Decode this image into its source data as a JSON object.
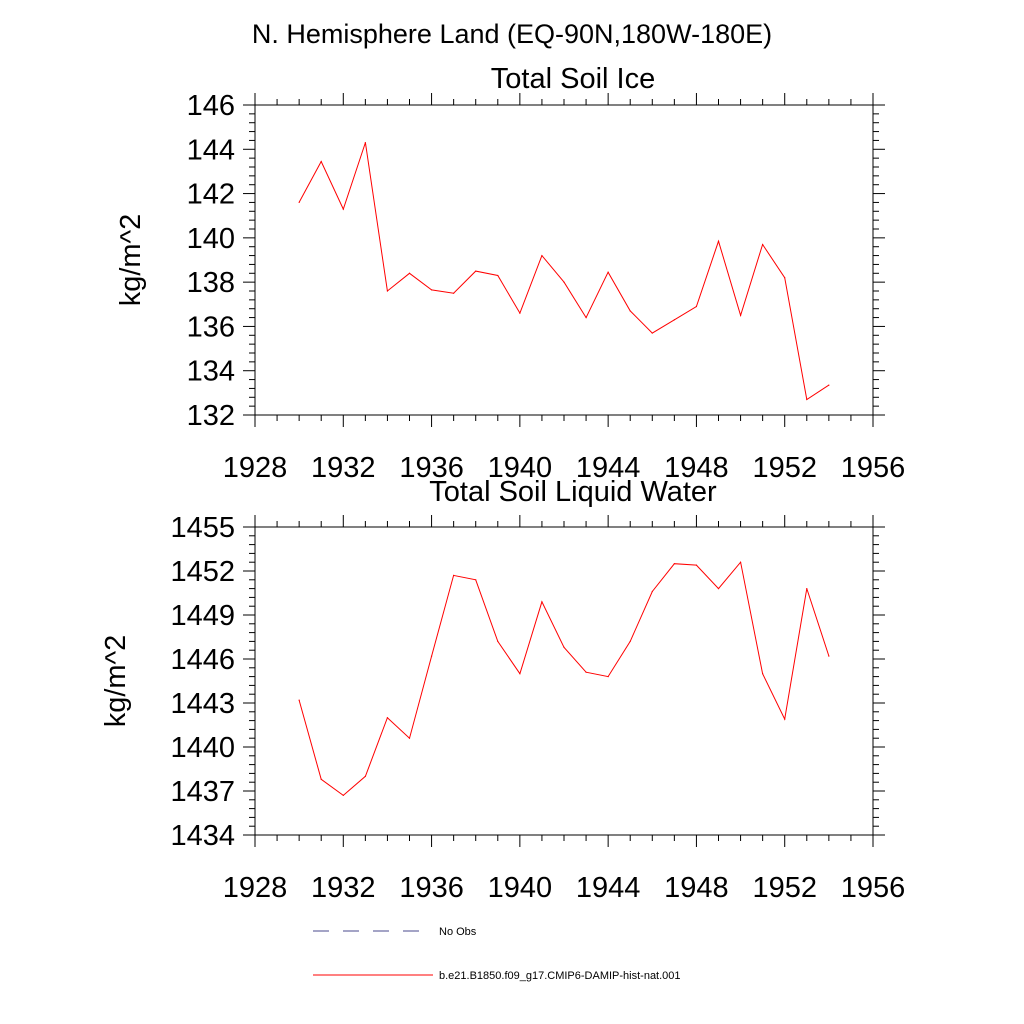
{
  "figure": {
    "title": "N. Hemisphere Land (EQ-90N,180W-180E)"
  },
  "chart_data": [
    {
      "type": "line",
      "title": "Total Soil Ice",
      "xlabel": "",
      "ylabel": "kg/m^2",
      "xlim": [
        1928,
        1956
      ],
      "ylim": [
        132,
        146
      ],
      "xticks": [
        1928,
        1932,
        1936,
        1940,
        1944,
        1948,
        1952,
        1956
      ],
      "yticks": [
        132,
        134,
        136,
        138,
        140,
        142,
        144,
        146
      ],
      "grid": false,
      "x": [
        1930,
        1931,
        1932,
        1933,
        1934,
        1935,
        1936,
        1937,
        1938,
        1939,
        1940,
        1941,
        1942,
        1943,
        1944,
        1945,
        1946,
        1947,
        1948,
        1949,
        1950,
        1951,
        1952,
        1953,
        1954
      ],
      "series": [
        {
          "name": "b.e21.B1850.f09_g17.CMIP6-DAMIP-hist-nat.001",
          "color": "#ff0000",
          "values": [
            141.6,
            143.45,
            141.3,
            144.3,
            137.6,
            138.4,
            137.65,
            137.5,
            138.5,
            138.3,
            136.6,
            139.2,
            138.0,
            136.4,
            138.45,
            136.7,
            135.7,
            136.3,
            136.9,
            139.85,
            136.5,
            139.7,
            138.2,
            132.7,
            133.35
          ]
        }
      ]
    },
    {
      "type": "line",
      "title": "Total Soil Liquid Water",
      "xlabel": "",
      "ylabel": "kg/m^2",
      "xlim": [
        1928,
        1956
      ],
      "ylim": [
        1434,
        1455
      ],
      "xticks": [
        1928,
        1932,
        1936,
        1940,
        1944,
        1948,
        1952,
        1956
      ],
      "yticks": [
        1434,
        1437,
        1440,
        1443,
        1446,
        1449,
        1452,
        1455
      ],
      "grid": false,
      "x": [
        1930,
        1931,
        1932,
        1933,
        1934,
        1935,
        1936,
        1937,
        1938,
        1939,
        1940,
        1941,
        1942,
        1943,
        1944,
        1945,
        1946,
        1947,
        1948,
        1949,
        1950,
        1951,
        1952,
        1953,
        1954
      ],
      "series": [
        {
          "name": "b.e21.B1850.f09_g17.CMIP6-DAMIP-hist-nat.001",
          "color": "#ff0000",
          "values": [
            1443.2,
            1437.8,
            1436.7,
            1438.0,
            1442.0,
            1440.6,
            1446.2,
            1451.7,
            1451.4,
            1447.2,
            1445.0,
            1449.9,
            1446.8,
            1445.1,
            1444.8,
            1447.2,
            1450.6,
            1452.5,
            1452.4,
            1450.8,
            1452.6,
            1445.0,
            1441.9,
            1450.8,
            1446.2
          ]
        }
      ]
    }
  ],
  "legend": {
    "placement": "bottom",
    "items": [
      {
        "label": "No Obs",
        "color": "#4a4a8c",
        "dash": "dashed"
      },
      {
        "label": "b.e21.B1850.f09_g17.CMIP6-DAMIP-hist-nat.001",
        "color": "#ff0000",
        "dash": "solid"
      }
    ]
  }
}
